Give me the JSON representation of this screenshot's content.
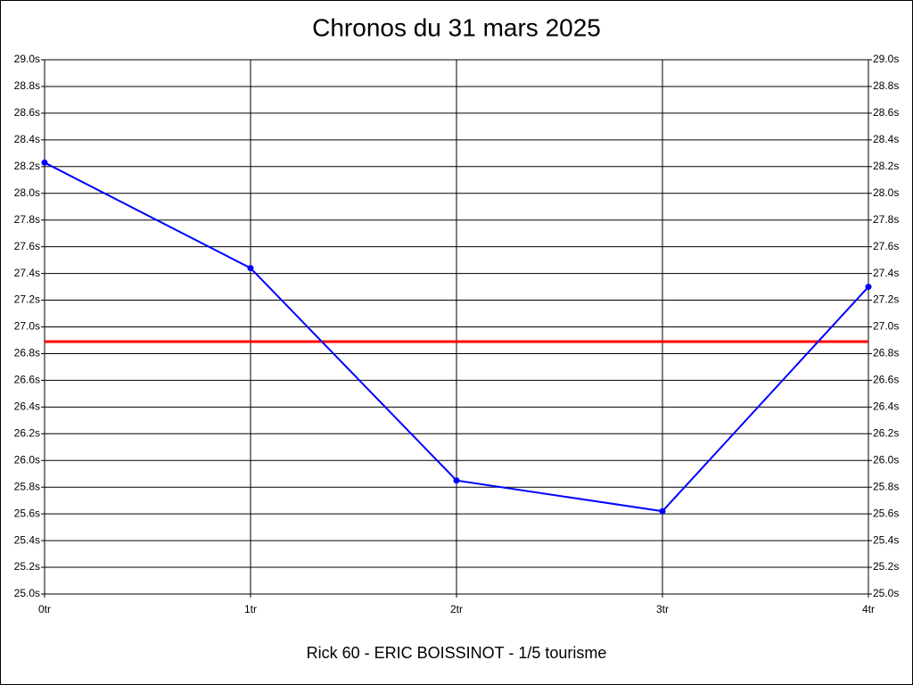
{
  "chart_data": {
    "type": "line",
    "title": "Chronos du 31 mars 2025",
    "subtitle": "Rick 60 - ERIC BOISSINOT - 1/5 tourisme",
    "x": [
      0,
      1,
      2,
      3,
      4
    ],
    "series": [
      {
        "color": "#0000ff",
        "values": [
          28.23,
          27.44,
          25.85,
          25.62,
          27.3
        ]
      }
    ],
    "reference_line": {
      "value": 26.89,
      "color": "#ff0000"
    },
    "xlim": [
      0,
      4
    ],
    "xticks": [
      {
        "value": 0,
        "label": "0tr"
      },
      {
        "value": 1,
        "label": "1tr"
      },
      {
        "value": 2,
        "label": "2tr"
      },
      {
        "value": 3,
        "label": "3tr"
      },
      {
        "value": 4,
        "label": "4tr"
      }
    ],
    "ylim": [
      25,
      29
    ],
    "yticks": [
      {
        "value": 25,
        "label": "25.0s"
      },
      {
        "value": 25.2,
        "label": "25.2s"
      },
      {
        "value": 25.4,
        "label": "25.4s"
      },
      {
        "value": 25.6,
        "label": "25.6s"
      },
      {
        "value": 25.8,
        "label": "25.8s"
      },
      {
        "value": 26,
        "label": "26.0s"
      },
      {
        "value": 26.2,
        "label": "26.2s"
      },
      {
        "value": 26.4,
        "label": "26.4s"
      },
      {
        "value": 26.6,
        "label": "26.6s"
      },
      {
        "value": 26.8,
        "label": "26.8s"
      },
      {
        "value": 27,
        "label": "27.0s"
      },
      {
        "value": 27.2,
        "label": "27.2s"
      },
      {
        "value": 27.4,
        "label": "27.4s"
      },
      {
        "value": 27.6,
        "label": "27.6s"
      },
      {
        "value": 27.8,
        "label": "27.8s"
      },
      {
        "value": 28,
        "label": "28.0s"
      },
      {
        "value": 28.2,
        "label": "28.2s"
      },
      {
        "value": 28.4,
        "label": "28.4s"
      },
      {
        "value": 28.6,
        "label": "28.6s"
      },
      {
        "value": 28.8,
        "label": "28.8s"
      },
      {
        "value": 29,
        "label": "29.0s"
      }
    ],
    "grid": true
  }
}
